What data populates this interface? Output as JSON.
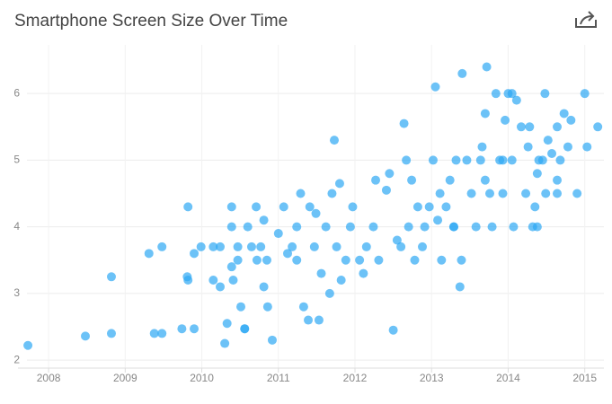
{
  "chart_data": {
    "type": "scatter",
    "title": "Smartphone Screen Size Over Time",
    "color": "#2ea8f4",
    "grid": true,
    "xlim": [
      2007.6,
      2015.25
    ],
    "xticks": [
      2008,
      2009,
      2010,
      2011,
      2012,
      2013,
      2014,
      2015
    ],
    "ylim": [
      1.88,
      6.73
    ],
    "yticks": [
      2,
      3,
      4,
      5,
      6
    ],
    "x": [
      2007.73,
      2008.48,
      2008.82,
      2008.82,
      2009.31,
      2009.48,
      2009.38,
      2009.48,
      2009.74,
      2009.81,
      2009.82,
      2009.82,
      2009.9,
      2009.99,
      2009.9,
      2010.15,
      2010.15,
      2010.24,
      2010.3,
      2010.24,
      2010.33,
      2010.39,
      2010.39,
      2010.39,
      2010.47,
      2010.41,
      2010.47,
      2010.51,
      2010.56,
      2010.6,
      2010.65,
      2010.71,
      2010.56,
      2010.72,
      2010.77,
      2010.81,
      2010.81,
      2010.85,
      2010.86,
      2010.92,
      2011.0,
      2011.07,
      2011.12,
      2011.18,
      2011.24,
      2011.24,
      2011.29,
      2011.33,
      2011.39,
      2011.41,
      2011.47,
      2011.49,
      2011.53,
      2011.56,
      2011.62,
      2011.67,
      2011.7,
      2011.73,
      2011.76,
      2011.8,
      2011.82,
      2011.88,
      2011.94,
      2011.97,
      2012.06,
      2012.11,
      2012.15,
      2012.24,
      2012.27,
      2012.31,
      2012.41,
      2012.45,
      2012.5,
      2012.55,
      2012.6,
      2012.64,
      2012.67,
      2012.7,
      2012.74,
      2012.78,
      2012.82,
      2012.88,
      2012.91,
      2012.97,
      2013.02,
      2013.05,
      2013.08,
      2013.11,
      2013.13,
      2013.19,
      2013.29,
      2013.32,
      2013.37,
      2013.39,
      2013.4,
      2013.46,
      2013.52,
      2013.58,
      2013.64,
      2013.66,
      2013.7,
      2013.72,
      2013.76,
      2013.79,
      2013.84,
      2013.89,
      2013.96,
      2014.0,
      2014.05,
      2014.07,
      2014.11,
      2014.17,
      2014.23,
      2014.26,
      2014.28,
      2014.35,
      2014.38,
      2014.48,
      2014.52,
      2014.57,
      2014.64,
      2014.68,
      2014.73,
      2014.78,
      2014.82,
      2014.9,
      2015.0,
      2015.03,
      2015.17,
      2014.38,
      2014.32,
      2014.64,
      2014.64,
      2014.49,
      2014.4,
      2014.45,
      2013.93,
      2014.05,
      2013.7,
      2013.93,
      2013.24,
      2013.29
    ],
    "y": [
      2.22,
      2.36,
      2.4,
      3.25,
      3.6,
      3.7,
      2.4,
      2.4,
      2.47,
      3.25,
      3.2,
      4.3,
      3.6,
      3.7,
      2.47,
      3.2,
      3.7,
      3.7,
      2.25,
      3.1,
      2.55,
      4.0,
      4.3,
      3.4,
      3.5,
      3.2,
      3.7,
      2.8,
      2.47,
      4.0,
      3.7,
      4.3,
      2.47,
      3.5,
      3.7,
      4.1,
      3.1,
      3.5,
      2.8,
      2.3,
      3.9,
      4.3,
      3.6,
      3.7,
      4.0,
      3.5,
      4.5,
      2.8,
      2.6,
      4.3,
      3.7,
      4.2,
      2.6,
      3.3,
      4.0,
      3.0,
      4.5,
      5.3,
      3.7,
      4.65,
      3.2,
      3.5,
      4.0,
      4.3,
      3.5,
      3.3,
      3.7,
      4.0,
      4.7,
      3.5,
      4.55,
      4.8,
      2.45,
      3.8,
      3.7,
      5.55,
      5.0,
      4.0,
      4.7,
      3.5,
      4.3,
      3.7,
      4.0,
      4.3,
      5.0,
      6.1,
      4.1,
      4.5,
      3.5,
      4.3,
      4.0,
      5.0,
      3.1,
      3.5,
      6.3,
      5.0,
      4.5,
      4.0,
      5.0,
      5.2,
      5.7,
      6.4,
      4.5,
      4.0,
      6.0,
      5.0,
      5.6,
      6.0,
      6.0,
      4.0,
      5.9,
      5.5,
      4.5,
      5.2,
      5.5,
      4.3,
      4.8,
      6.0,
      5.3,
      5.1,
      5.5,
      5.0,
      5.7,
      5.2,
      5.6,
      4.5,
      6.0,
      5.2,
      5.5,
      4.0,
      4.0,
      4.5,
      4.7,
      4.5,
      5.0,
      5.0,
      5.0,
      5.0,
      4.7,
      4.5,
      4.7,
      4.0
    ]
  }
}
